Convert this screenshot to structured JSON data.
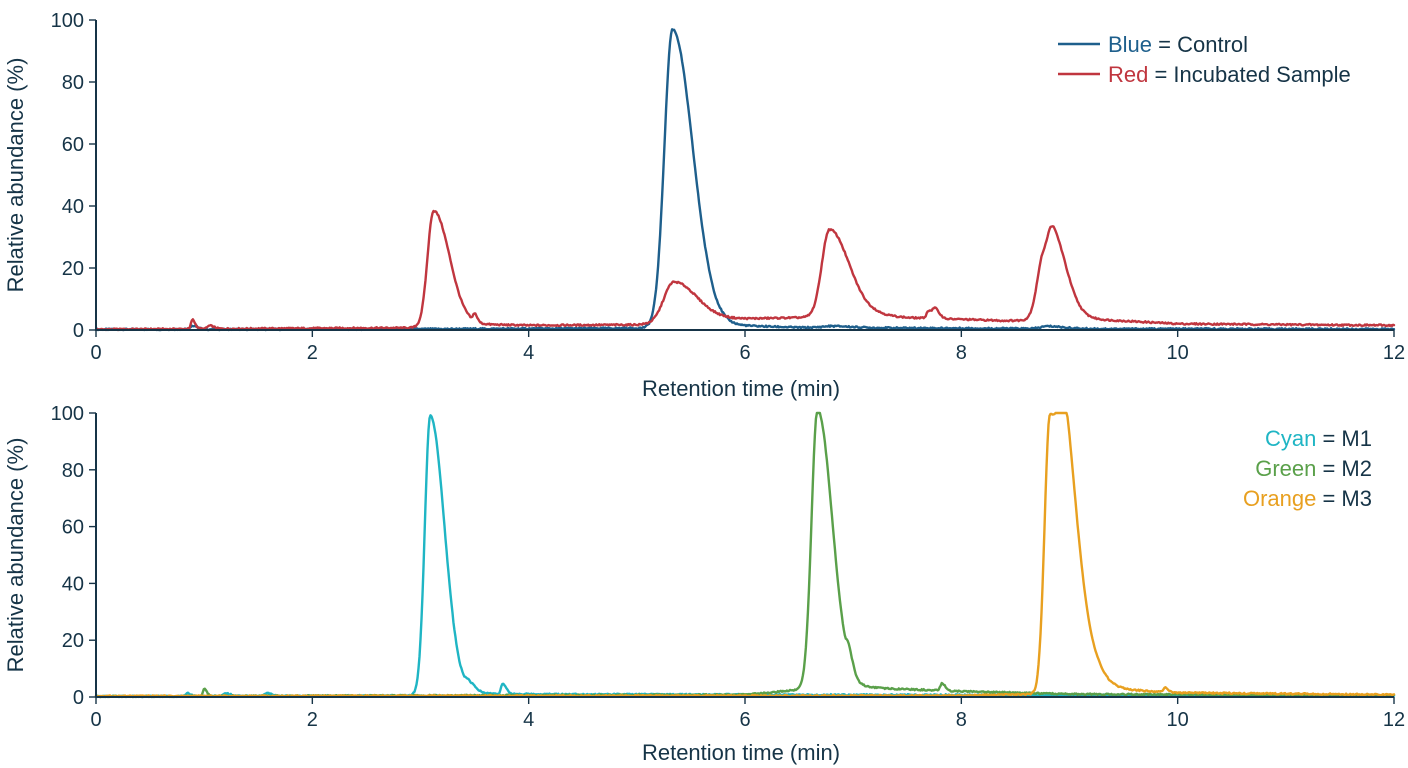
{
  "colors": {
    "axis": "#163447",
    "blue": "#1e5f8c",
    "red": "#c0363f",
    "cyan": "#1fb5c4",
    "green": "#5aa04a",
    "orange": "#e8a020"
  },
  "chart_data": [
    {
      "type": "line",
      "xlabel": "Retention time (min)",
      "ylabel": "Relative abundance (%)",
      "xlim": [
        0,
        12
      ],
      "ylim": [
        0,
        100
      ],
      "x_ticks": [
        "0",
        "2",
        "4",
        "6",
        "8",
        "10",
        "12"
      ],
      "y_ticks": [
        "0",
        "20",
        "40",
        "60",
        "80",
        "100"
      ],
      "grid": false,
      "legend_position": "top-right",
      "legend": [
        {
          "color_word": "Blue",
          "rest": " = Control",
          "color": "#1e5f8c"
        },
        {
          "color_word": "Red",
          "rest": " = Incubated Sample",
          "color": "#c0363f"
        }
      ],
      "series": [
        {
          "color": "#1e5f8c",
          "baseline": [
            [
              0,
              0.2
            ],
            [
              3,
              0.3
            ],
            [
              5,
              0.6
            ],
            [
              5.8,
              1.6
            ],
            [
              6.5,
              0.8
            ],
            [
              9,
              0.4
            ],
            [
              12,
              0.3
            ]
          ],
          "peaks": [
            {
              "x": 5.33,
              "h": 96,
              "w": 0.075,
              "tail": 0.11
            },
            {
              "x": 0.9,
              "h": 1.2,
              "w": 0.02,
              "tail": 0.02
            },
            {
              "x": 6.8,
              "h": 0.5,
              "w": 0.08,
              "tail": 0.1
            },
            {
              "x": 8.8,
              "h": 0.8,
              "w": 0.06,
              "tail": 0.08
            }
          ]
        },
        {
          "color": "#c0363f",
          "baseline": [
            [
              0,
              0.2
            ],
            [
              2.9,
              0.7
            ],
            [
              3.3,
              2
            ],
            [
              4,
              1.5
            ],
            [
              5,
              1.7
            ],
            [
              5.8,
              3.5
            ],
            [
              6.5,
              4
            ],
            [
              7.2,
              5
            ],
            [
              7.5,
              4
            ],
            [
              8.4,
              3
            ],
            [
              9.2,
              3.5
            ],
            [
              10,
              2
            ],
            [
              12,
              1.5
            ]
          ],
          "peaks": [
            {
              "x": 3.12,
              "h": 37,
              "w": 0.055,
              "tail": 0.09
            },
            {
              "x": 5.34,
              "h": 13,
              "w": 0.09,
              "tail": 0.12
            },
            {
              "x": 6.78,
              "h": 28,
              "w": 0.07,
              "tail": 0.11
            },
            {
              "x": 8.76,
              "h": 20,
              "w": 0.06,
              "tail": 0.1
            },
            {
              "x": 8.85,
              "h": 13,
              "w": 0.05,
              "tail": 0.08
            },
            {
              "x": 0.89,
              "h": 3,
              "w": 0.012,
              "tail": 0.015
            },
            {
              "x": 1.05,
              "h": 1,
              "w": 0.02,
              "tail": 0.02
            },
            {
              "x": 3.5,
              "h": 2.5,
              "w": 0.012,
              "tail": 0.012
            },
            {
              "x": 7.7,
              "h": 2.5,
              "w": 0.02,
              "tail": 0.02
            },
            {
              "x": 7.76,
              "h": 2.6,
              "w": 0.02,
              "tail": 0.02
            }
          ]
        }
      ]
    },
    {
      "type": "line",
      "xlabel": "Retention time (min)",
      "ylabel": "Relative abundance (%)",
      "xlim": [
        0,
        12
      ],
      "ylim": [
        0,
        100
      ],
      "x_ticks": [
        "0",
        "2",
        "4",
        "6",
        "8",
        "10",
        "12"
      ],
      "y_ticks": [
        "0",
        "20",
        "40",
        "60",
        "80",
        "100"
      ],
      "grid": false,
      "legend_position": "top-right",
      "legend": [
        {
          "color_word": "Cyan",
          "rest": " = M1",
          "color": "#1fb5c4"
        },
        {
          "color_word": "Green",
          "rest": " = M2",
          "color": "#5aa04a"
        },
        {
          "color_word": "Orange",
          "rest": " = M3",
          "color": "#e8a020"
        }
      ],
      "series": [
        {
          "color": "#1fb5c4",
          "baseline": [
            [
              0,
              0.2
            ],
            [
              2.9,
              0.5
            ],
            [
              3.3,
              1.5
            ],
            [
              4,
              1
            ],
            [
              6,
              0.8
            ],
            [
              12,
              0.5
            ]
          ],
          "peaks": [
            {
              "x": 3.09,
              "h": 98,
              "w": 0.05,
              "tail": 0.08
            },
            {
              "x": 3.45,
              "h": 2.5,
              "w": 0.03,
              "tail": 0.03
            },
            {
              "x": 3.76,
              "h": 3.5,
              "w": 0.015,
              "tail": 0.015
            },
            {
              "x": 0.85,
              "h": 1,
              "w": 0.015,
              "tail": 0.015
            },
            {
              "x": 1.2,
              "h": 1,
              "w": 0.02,
              "tail": 0.02
            },
            {
              "x": 1.58,
              "h": 1,
              "w": 0.02,
              "tail": 0.02
            }
          ]
        },
        {
          "color": "#5aa04a",
          "baseline": [
            [
              0,
              0.2
            ],
            [
              6,
              0.8
            ],
            [
              6.9,
              4
            ],
            [
              7.3,
              3
            ],
            [
              8,
              2
            ],
            [
              9,
              1
            ],
            [
              12,
              0.5
            ]
          ],
          "peaks": [
            {
              "x": 6.67,
              "h": 98,
              "w": 0.055,
              "tail": 0.08
            },
            {
              "x": 6.96,
              "h": 5,
              "w": 0.02,
              "tail": 0.02
            },
            {
              "x": 7.82,
              "h": 2.5,
              "w": 0.015,
              "tail": 0.015
            },
            {
              "x": 1.0,
              "h": 2.5,
              "w": 0.012,
              "tail": 0.012
            }
          ]
        },
        {
          "color": "#e8a020",
          "baseline": [
            [
              0,
              0.3
            ],
            [
              8,
              0.5
            ],
            [
              8.7,
              1
            ],
            [
              9.3,
              3
            ],
            [
              10,
              1.5
            ],
            [
              12,
              0.8
            ]
          ],
          "peaks": [
            {
              "x": 8.82,
              "h": 98,
              "w": 0.05,
              "tail": 0.16
            },
            {
              "x": 8.95,
              "h": 25,
              "w": 0.04,
              "tail": 0.06
            },
            {
              "x": 9.88,
              "h": 1.5,
              "w": 0.015,
              "tail": 0.015
            }
          ]
        }
      ]
    }
  ]
}
